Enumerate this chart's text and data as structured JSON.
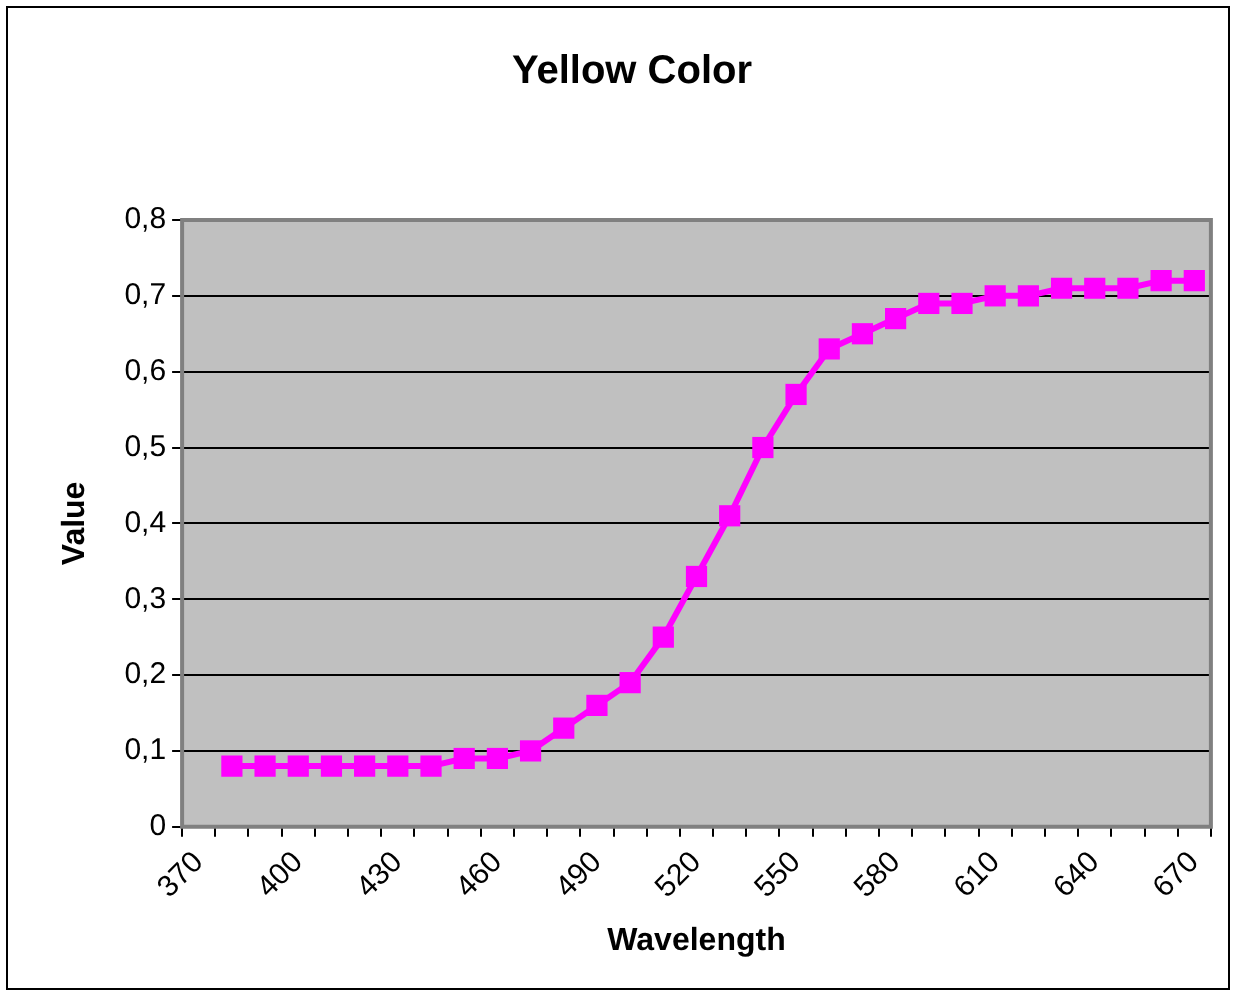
{
  "chart_data": {
    "type": "line",
    "title": "Yellow Color",
    "xlabel": "Wavelength",
    "ylabel": "Value",
    "categories": [
      "370",
      null,
      null,
      "400",
      null,
      null,
      "430",
      null,
      null,
      "460",
      null,
      null,
      "490",
      null,
      null,
      "520",
      null,
      null,
      "550",
      null,
      null,
      "580",
      null,
      null,
      "610",
      null,
      null,
      "640",
      null,
      null,
      "670"
    ],
    "series": [
      {
        "color": "#ff00ff",
        "values": [
          null,
          0.08,
          0.08,
          0.08,
          0.08,
          0.08,
          0.08,
          0.08,
          0.09,
          0.09,
          0.1,
          0.13,
          0.16,
          0.19,
          0.25,
          0.33,
          0.41,
          0.5,
          0.57,
          0.63,
          0.65,
          0.67,
          0.69,
          0.69,
          0.7,
          0.7,
          0.71,
          0.71,
          0.71,
          0.72,
          0.72
        ]
      }
    ],
    "ylim": [
      0,
      0.8
    ],
    "yticks": [
      0,
      {
        "value": 0.1,
        "label": "0,1"
      },
      {
        "value": 0.2,
        "label": "0,2"
      },
      {
        "value": 0.3,
        "label": "0,3"
      },
      {
        "value": 0.4,
        "label": "0,4"
      },
      {
        "value": 0.5,
        "label": "0,5"
      },
      {
        "value": 0.6,
        "label": "0,6"
      },
      {
        "value": 0.7,
        "label": "0,7"
      },
      {
        "value": 0.8,
        "label": "0,8"
      }
    ],
    "grid": "y",
    "legend": false,
    "marker": "square",
    "line_style": "solid"
  }
}
